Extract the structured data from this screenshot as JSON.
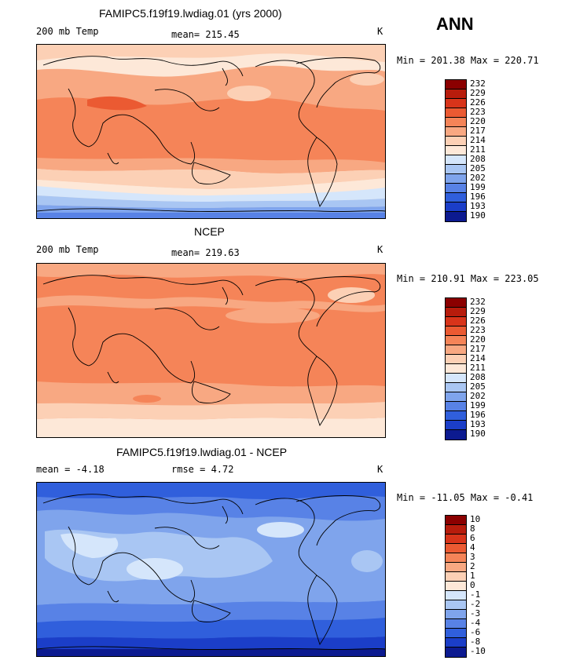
{
  "season": "ANN",
  "panels": [
    {
      "title": "FAMIPC5.f19f19.lwdiag.01 (yrs 2000)",
      "left_label": "200 mb Temp",
      "mid_label": "mean= 215.45",
      "units": "K",
      "minmax": "Min = 201.38 Max = 220.71"
    },
    {
      "title": "NCEP",
      "left_label": "200 mb Temp",
      "mid_label": "mean= 219.63",
      "units": "K",
      "minmax": "Min = 210.91 Max = 223.05"
    },
    {
      "title": "FAMIPC5.f19f19.lwdiag.01 - NCEP",
      "left_label": "mean =  -4.18",
      "mid_label": "rmse =   4.72",
      "units": "K",
      "minmax": "Min = -11.05 Max =  -0.41"
    }
  ],
  "colorbars": {
    "temperature": {
      "labels": [
        "232",
        "229",
        "226",
        "223",
        "220",
        "217",
        "214",
        "211",
        "208",
        "205",
        "202",
        "199",
        "196",
        "193",
        "190"
      ],
      "colors": [
        "#8b0000",
        "#b71c0c",
        "#d8341a",
        "#eb5a32",
        "#f58458",
        "#f8a882",
        "#fcd0b5",
        "#fde8d8",
        "#d5e6fb",
        "#a9c6f3",
        "#7fa4ec",
        "#5882e6",
        "#305fdc",
        "#1b3ec8",
        "#0c1a90"
      ]
    },
    "difference": {
      "labels": [
        "10",
        "8",
        "6",
        "4",
        "3",
        "2",
        "1",
        "0",
        "-1",
        "-2",
        "-3",
        "-4",
        "-6",
        "-8",
        "-10"
      ],
      "colors": [
        "#8b0000",
        "#b71c0c",
        "#d8341a",
        "#eb5a32",
        "#f58458",
        "#f8a882",
        "#fcd0b5",
        "#fde8d8",
        "#d5e6fb",
        "#a9c6f3",
        "#7fa4ec",
        "#5882e6",
        "#305fdc",
        "#1b3ec8",
        "#0c1a90"
      ]
    }
  }
}
